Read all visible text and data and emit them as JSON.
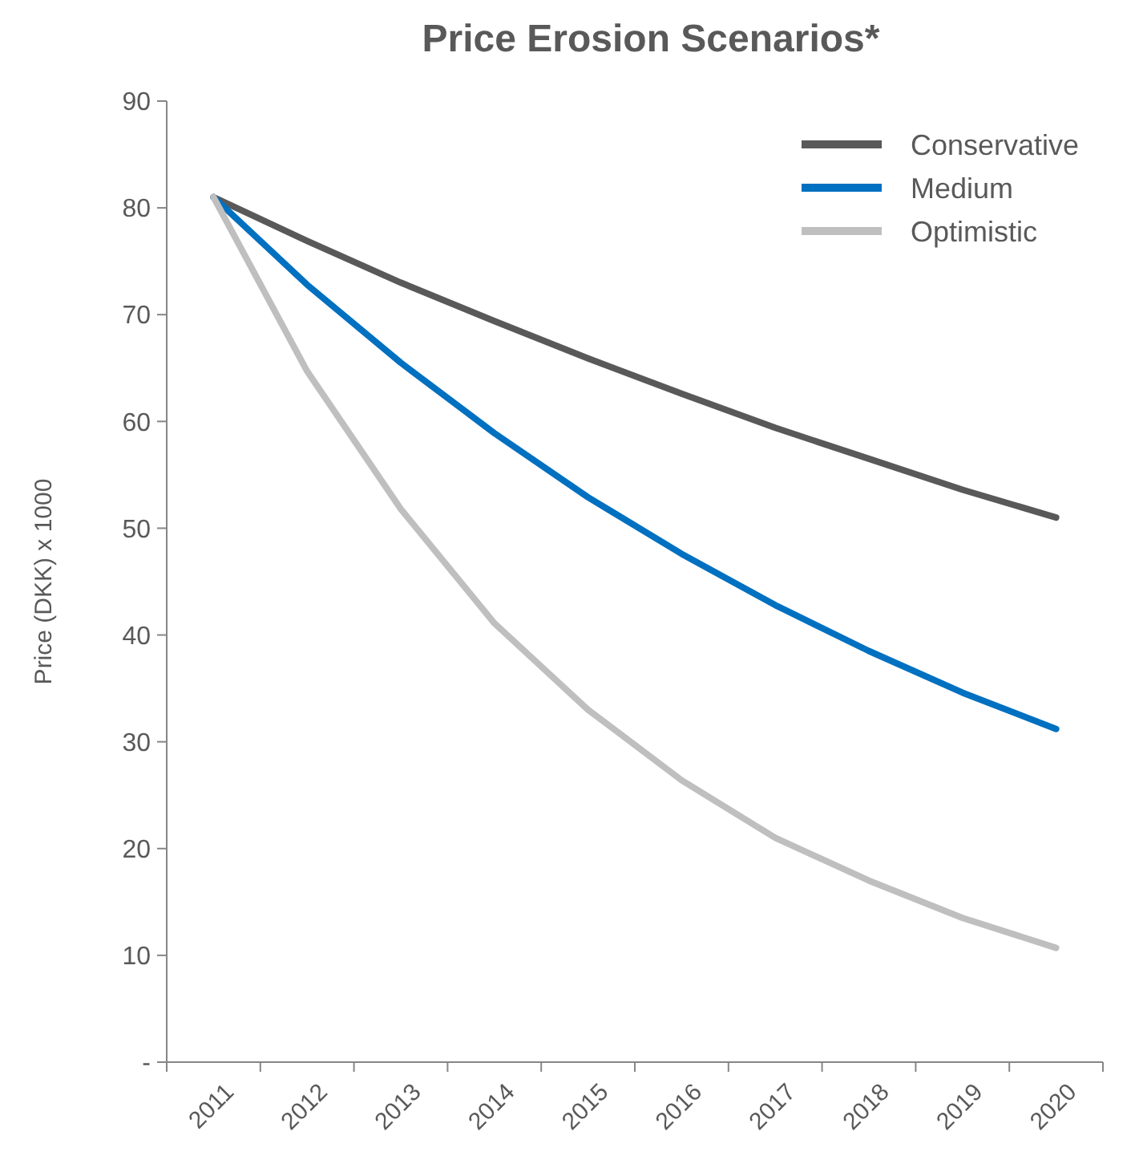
{
  "chart_data": {
    "type": "line",
    "title": "Price Erosion Scenarios*",
    "ylabel": "Price (DKK) x 1000",
    "categories": [
      "2011",
      "2012",
      "2013",
      "2014",
      "2015",
      "2016",
      "2017",
      "2018",
      "2019",
      "2020"
    ],
    "series": [
      {
        "name": "Conservative",
        "color": "#595959",
        "values": [
          81,
          76.9,
          73.0,
          69.4,
          65.9,
          62.6,
          59.4,
          56.5,
          53.6,
          51.0
        ]
      },
      {
        "name": "Medium",
        "color": "#0070c0",
        "values": [
          81,
          72.8,
          65.5,
          58.9,
          52.9,
          47.6,
          42.8,
          38.5,
          34.6,
          31.2
        ]
      },
      {
        "name": "Optimistic",
        "color": "#bfbfbf",
        "values": [
          81,
          64.7,
          51.8,
          41.1,
          33.0,
          26.4,
          21.0,
          17.0,
          13.5,
          10.7
        ]
      }
    ],
    "ylim": [
      0,
      90
    ],
    "yticks": [
      {
        "value": 0,
        "label": "-"
      },
      10,
      20,
      30,
      40,
      50,
      60,
      70,
      80,
      90
    ],
    "grid": false,
    "legend": "top right",
    "marker": "none",
    "line_style": "solid"
  }
}
